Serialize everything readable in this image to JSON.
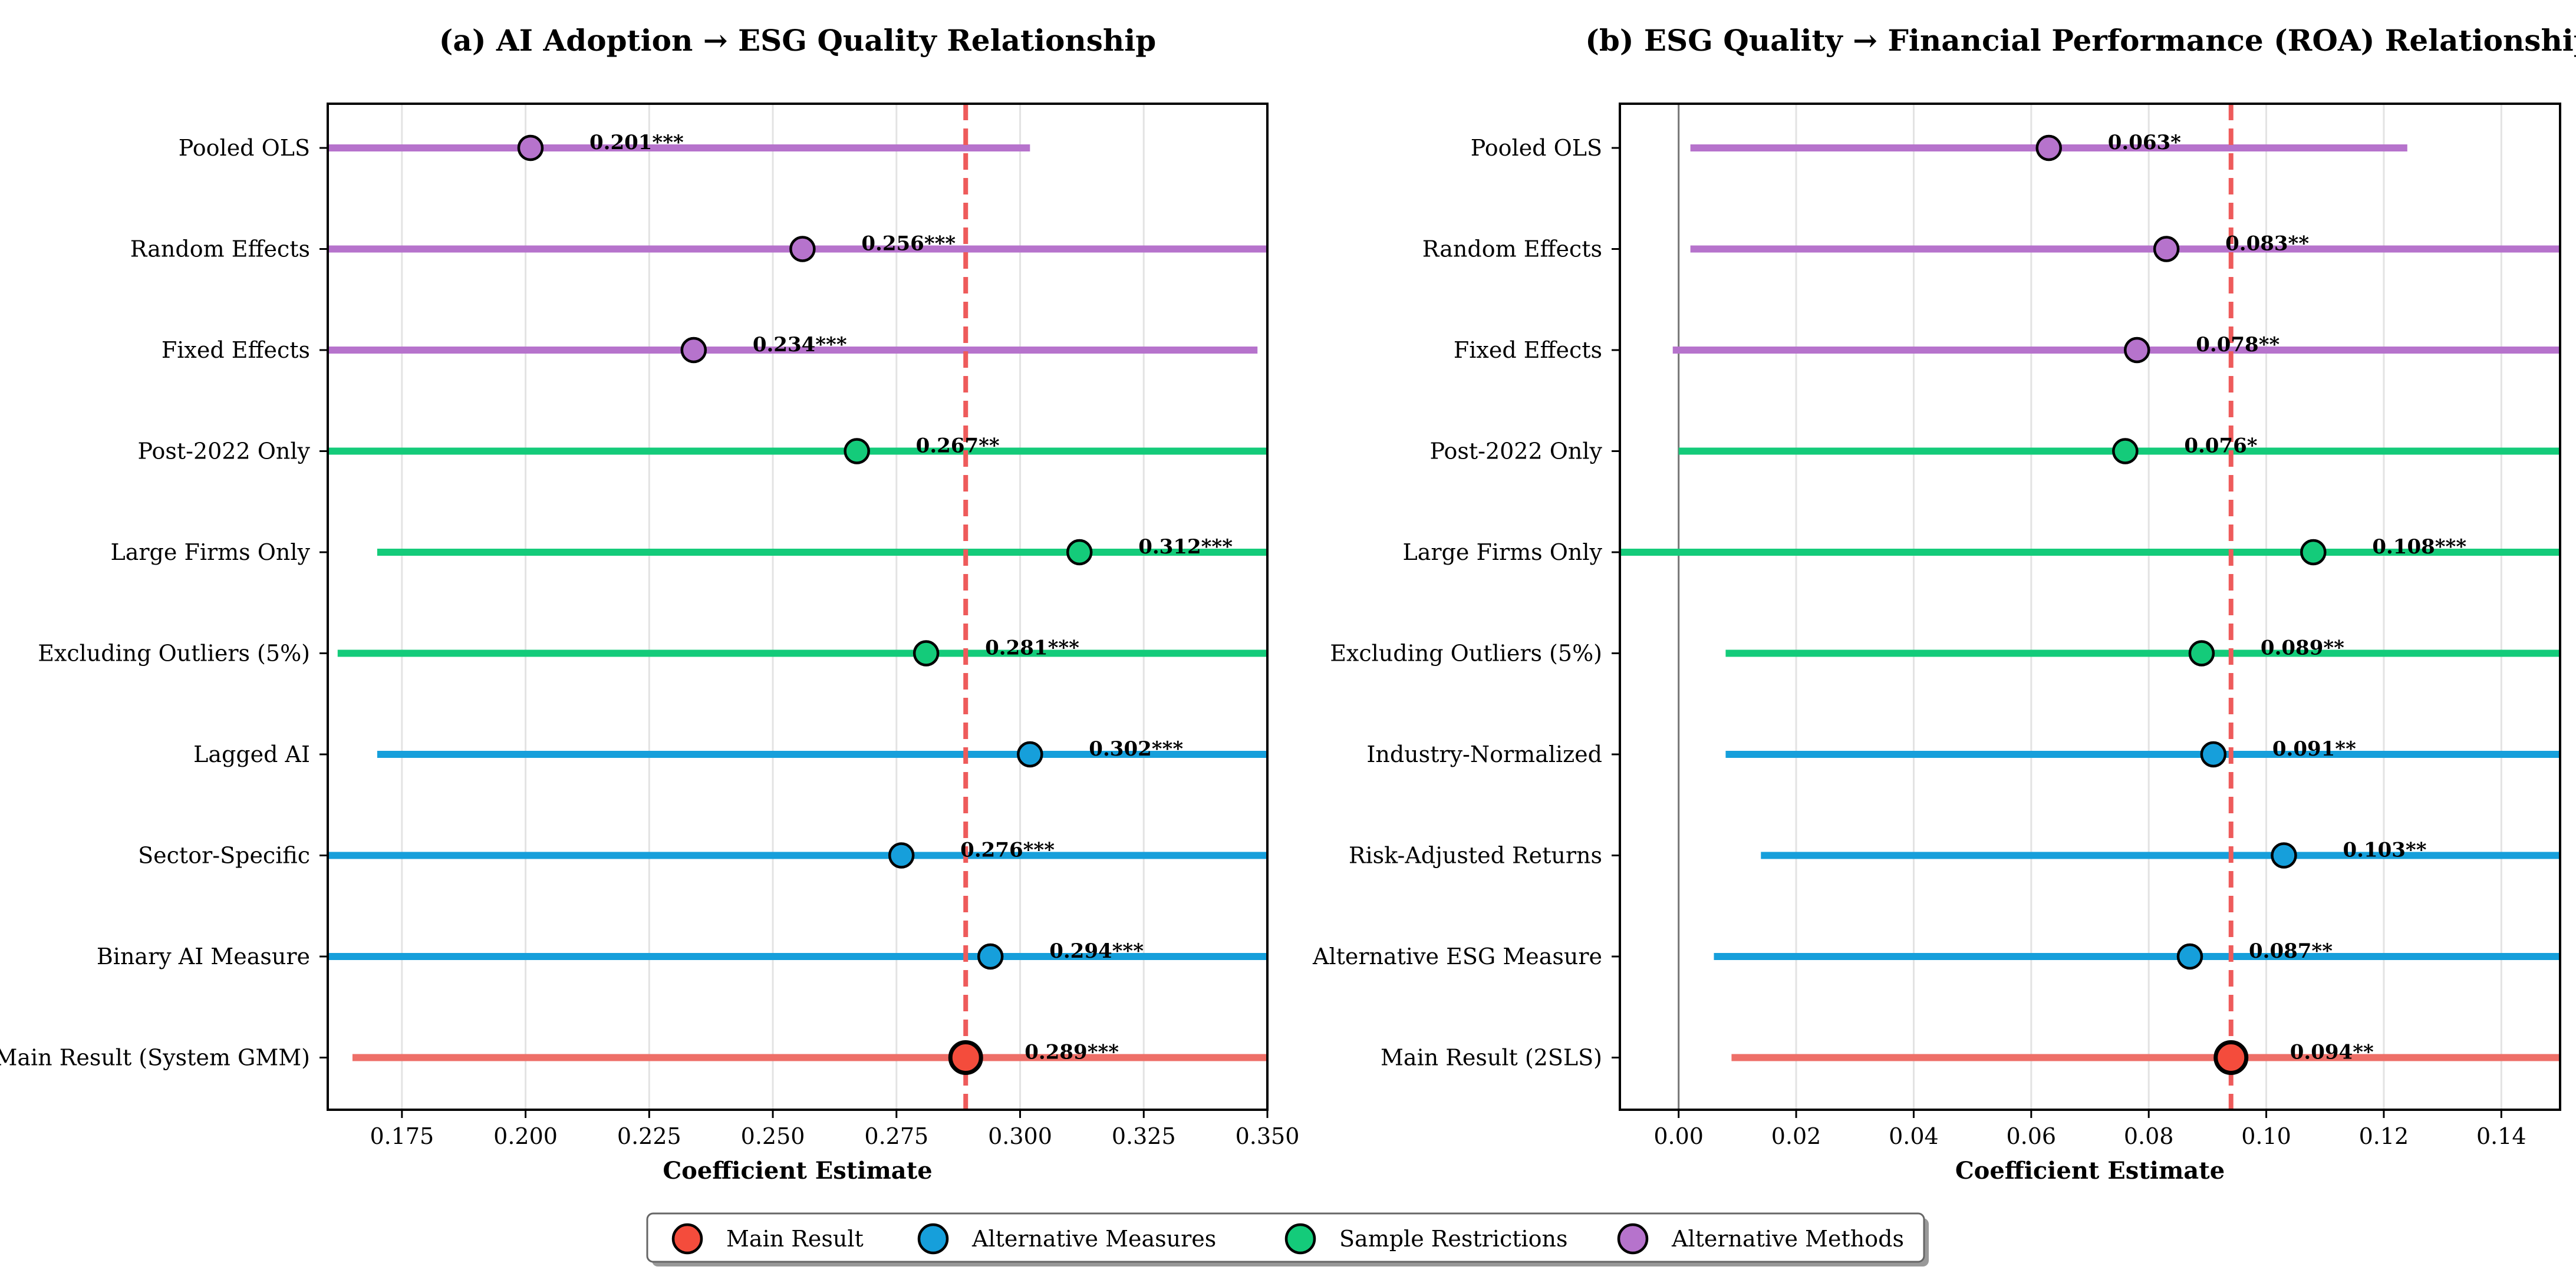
{
  "chart_data": [
    {
      "type": "forest",
      "title": "(a) AI Adoption → ESG Quality Relationship",
      "xlabel": "Coefficient Estimate",
      "xlim": [
        0.16,
        0.35
      ],
      "xticks": [
        "0.175",
        "0.200",
        "0.225",
        "0.250",
        "0.275",
        "0.300",
        "0.325",
        "0.350"
      ],
      "xtick_values": [
        0.175,
        0.2,
        0.225,
        0.25,
        0.275,
        0.3,
        0.325,
        0.35
      ],
      "reference_line": 0.289,
      "zero_line": false,
      "rows": [
        {
          "label": "Pooled OLS",
          "estimate": 0.201,
          "ci": [
            0.16,
            0.302
          ],
          "value_label": "0.201***",
          "group": "alternative_methods"
        },
        {
          "label": "Random Effects",
          "estimate": 0.256,
          "ci": [
            0.16,
            0.35
          ],
          "value_label": "0.256***",
          "group": "alternative_methods"
        },
        {
          "label": "Fixed Effects",
          "estimate": 0.234,
          "ci": [
            0.16,
            0.348
          ],
          "value_label": "0.234***",
          "group": "alternative_methods"
        },
        {
          "label": "Post-2022 Only",
          "estimate": 0.267,
          "ci": [
            0.16,
            0.35
          ],
          "value_label": "0.267**",
          "group": "sample_restrictions"
        },
        {
          "label": "Large Firms Only",
          "estimate": 0.312,
          "ci": [
            0.17,
            0.35
          ],
          "value_label": "0.312***",
          "group": "sample_restrictions"
        },
        {
          "label": "Excluding Outliers (5%)",
          "estimate": 0.281,
          "ci": [
            0.162,
            0.35
          ],
          "value_label": "0.281***",
          "group": "sample_restrictions"
        },
        {
          "label": "Lagged AI",
          "estimate": 0.302,
          "ci": [
            0.17,
            0.35
          ],
          "value_label": "0.302***",
          "group": "alternative_measures"
        },
        {
          "label": "Sector-Specific",
          "estimate": 0.276,
          "ci": [
            0.16,
            0.35
          ],
          "value_label": "0.276***",
          "group": "alternative_measures"
        },
        {
          "label": "Binary AI Measure",
          "estimate": 0.294,
          "ci": [
            0.16,
            0.35
          ],
          "value_label": "0.294***",
          "group": "alternative_measures"
        },
        {
          "label": "Main Result (System GMM)",
          "estimate": 0.289,
          "ci": [
            0.165,
            0.35
          ],
          "value_label": "0.289***",
          "group": "main"
        }
      ]
    },
    {
      "type": "forest",
      "title": "(b) ESG Quality → Financial Performance (ROA) Relationship",
      "xlabel": "Coefficient Estimate",
      "xlim": [
        -0.01,
        0.15
      ],
      "xticks": [
        "0.00",
        "0.02",
        "0.04",
        "0.06",
        "0.08",
        "0.10",
        "0.12",
        "0.14"
      ],
      "xtick_values": [
        0.0,
        0.02,
        0.04,
        0.06,
        0.08,
        0.1,
        0.12,
        0.14
      ],
      "reference_line": 0.094,
      "zero_line": true,
      "rows": [
        {
          "label": "Pooled OLS",
          "estimate": 0.063,
          "ci": [
            0.002,
            0.124
          ],
          "value_label": "0.063*",
          "group": "alternative_methods"
        },
        {
          "label": "Random Effects",
          "estimate": 0.083,
          "ci": [
            0.002,
            0.15
          ],
          "value_label": "0.083**",
          "group": "alternative_methods"
        },
        {
          "label": "Fixed Effects",
          "estimate": 0.078,
          "ci": [
            -0.001,
            0.15
          ],
          "value_label": "0.078**",
          "group": "alternative_methods"
        },
        {
          "label": "Post-2022 Only",
          "estimate": 0.076,
          "ci": [
            0.0,
            0.15
          ],
          "value_label": "0.076*",
          "group": "sample_restrictions"
        },
        {
          "label": "Large Firms Only",
          "estimate": 0.108,
          "ci": [
            -0.01,
            0.15
          ],
          "value_label": "0.108***",
          "group": "sample_restrictions"
        },
        {
          "label": "Excluding Outliers (5%)",
          "estimate": 0.089,
          "ci": [
            0.008,
            0.15
          ],
          "value_label": "0.089**",
          "group": "sample_restrictions"
        },
        {
          "label": "Industry-Normalized",
          "estimate": 0.091,
          "ci": [
            0.008,
            0.15
          ],
          "value_label": "0.091**",
          "group": "alternative_measures"
        },
        {
          "label": "Risk-Adjusted Returns",
          "estimate": 0.103,
          "ci": [
            0.014,
            0.15
          ],
          "value_label": "0.103**",
          "group": "alternative_measures"
        },
        {
          "label": "Alternative ESG Measure",
          "estimate": 0.087,
          "ci": [
            0.006,
            0.15
          ],
          "value_label": "0.087**",
          "group": "alternative_measures"
        },
        {
          "label": "Main Result (2SLS)",
          "estimate": 0.094,
          "ci": [
            0.009,
            0.15
          ],
          "value_label": "0.094**",
          "group": "main"
        }
      ]
    }
  ],
  "legend": {
    "placement": "bottom-center",
    "items": [
      {
        "key": "main",
        "label": "Main Result"
      },
      {
        "key": "alternative_measures",
        "label": "Alternative Measures"
      },
      {
        "key": "sample_restrictions",
        "label": "Sample Restrictions"
      },
      {
        "key": "alternative_methods",
        "label": "Alternative Methods"
      }
    ]
  },
  "colors": {
    "main_line": "#ee6f68",
    "main_marker": "#f44c3c",
    "alternative_measures": "#169fdb",
    "sample_restrictions": "#14cb7a",
    "alternative_methods": "#b673cc",
    "reference_line": "#ee5b5b",
    "grid": "#e3e3e3",
    "zero_line": "#777777"
  }
}
